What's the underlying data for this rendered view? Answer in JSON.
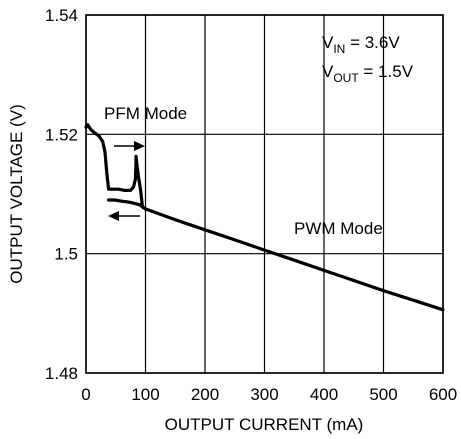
{
  "chart_data": {
    "type": "line",
    "xlabel": "OUTPUT CURRENT (mA)",
    "ylabel": "OUTPUT VOLTAGE (V)",
    "xlim": [
      0,
      600
    ],
    "ylim": [
      1.48,
      1.54
    ],
    "xticks": [
      "0",
      "100",
      "200",
      "300",
      "400",
      "500",
      "600"
    ],
    "yticks": [
      "1.48",
      "1.5",
      "1.52",
      "1.54"
    ],
    "grid": true,
    "annotations": {
      "vin_main": "V",
      "vin_sub": "IN",
      "vin_value": " = 3.6V",
      "vout_main": "V",
      "vout_sub": "OUT",
      "vout_value": " = 1.5V",
      "pfm_label": "PFM Mode",
      "pwm_label": "PWM Mode"
    },
    "series": [
      {
        "x": [
          0,
          3,
          8,
          15,
          22,
          28,
          32,
          35,
          38,
          45,
          55,
          65,
          75,
          80,
          83,
          84,
          84,
          85,
          88,
          92,
          95,
          100,
          150,
          200,
          250,
          300,
          350,
          400,
          450,
          500,
          550,
          600
        ],
        "y": [
          1.5212,
          1.5216,
          1.5208,
          1.5202,
          1.5197,
          1.5188,
          1.517,
          1.5135,
          1.5108,
          1.5108,
          1.5108,
          1.5106,
          1.5106,
          1.5112,
          1.5125,
          1.515,
          1.5163,
          1.5154,
          1.513,
          1.5105,
          1.5078,
          1.5075,
          1.5057,
          1.504,
          1.5023,
          1.5006,
          1.4989,
          1.4972,
          1.4955,
          1.4938,
          1.4922,
          1.4906
        ]
      },
      {
        "x": [
          38,
          48,
          60,
          75,
          90,
          100
        ],
        "y": [
          1.509,
          1.509,
          1.5088,
          1.5086,
          1.5082,
          1.5075
        ]
      }
    ]
  }
}
